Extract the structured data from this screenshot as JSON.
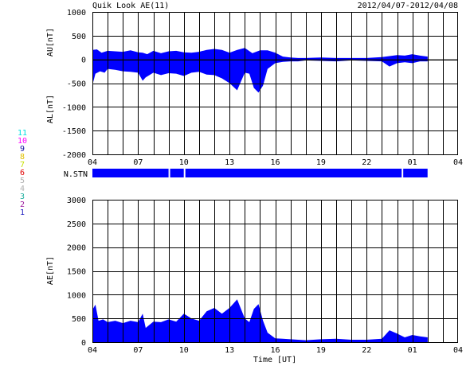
{
  "header": {
    "title": "Quik Look AE(11)",
    "date_range": "2012/04/07-2012/04/08"
  },
  "station_numbers": [
    {
      "label": "11",
      "color": "#00e0e0"
    },
    {
      "label": "10",
      "color": "#ff00ff"
    },
    {
      "label": "9",
      "color": "#1010a0"
    },
    {
      "label": "8",
      "color": "#e0c000"
    },
    {
      "label": "7",
      "color": "#c8e000"
    },
    {
      "label": "6",
      "color": "#e00000"
    },
    {
      "label": "5",
      "color": "#b0b0b0"
    },
    {
      "label": "4",
      "color": "#b0b0b0"
    },
    {
      "label": "3",
      "color": "#20b0a0"
    },
    {
      "label": "2",
      "color": "#a020a0"
    },
    {
      "label": "1",
      "color": "#2020c0"
    }
  ],
  "nstn": {
    "label": "N.STN",
    "coverage_hours": [
      0,
      22.0
    ],
    "gap_hours": [
      5.05,
      6.05,
      20.35
    ]
  },
  "colors": {
    "fill": "#0000ff",
    "grid": "#000000",
    "stn_bar": "#0000ff"
  },
  "chart_data": [
    {
      "type": "area",
      "ylabel_upper": "AU[nT]",
      "ylabel_lower": "AL[nT]",
      "ylim": [
        -2000,
        1000
      ],
      "yticks": [
        "1000",
        "500",
        "0",
        "-500",
        "-1000",
        "-1500",
        "-2000"
      ],
      "xlim_hours": [
        0,
        24
      ],
      "xticks": [
        "04",
        "07",
        "10",
        "13",
        "16",
        "19",
        "22",
        "01",
        "04"
      ],
      "grid": true,
      "series": [
        {
          "x_hours": [
            0,
            0.3,
            0.6,
            1.0,
            1.5,
            2.0,
            2.5,
            3.0,
            3.3,
            3.6,
            4.0,
            4.5,
            5.0,
            5.5,
            6.0,
            6.5,
            7.0,
            7.5,
            8.0,
            8.5,
            9.0,
            9.5,
            10.0,
            10.5,
            11.0,
            11.5,
            12.0,
            12.5,
            13.0,
            13.5,
            14.0,
            15.0,
            16.0,
            17.0,
            18.0,
            19.0,
            20.0,
            20.5,
            21.0,
            21.5,
            22.0
          ],
          "values": [
            200,
            210,
            140,
            180,
            170,
            160,
            190,
            150,
            140,
            110,
            180,
            130,
            170,
            180,
            150,
            140,
            160,
            200,
            220,
            200,
            140,
            200,
            240,
            130,
            190,
            190,
            140,
            60,
            40,
            30,
            30,
            40,
            30,
            30,
            30,
            50,
            90,
            80,
            110,
            80,
            60
          ]
        },
        {
          "x_hours": [
            0,
            0.2,
            0.5,
            0.8,
            1.0,
            1.5,
            2.0,
            2.5,
            3.0,
            3.3,
            3.5,
            4.0,
            4.5,
            5.0,
            5.5,
            6.0,
            6.5,
            7.0,
            7.5,
            8.0,
            8.5,
            9.0,
            9.5,
            10.0,
            10.3,
            10.6,
            10.9,
            11.2,
            11.5,
            12.0,
            12.5,
            13.0,
            13.5,
            14.0,
            15.0,
            16.0,
            17.0,
            18.0,
            19.0,
            19.5,
            20.0,
            20.5,
            21.0,
            21.5,
            22.0
          ],
          "values": [
            -540,
            -300,
            -250,
            -280,
            -200,
            -220,
            -250,
            -260,
            -280,
            -450,
            -380,
            -280,
            -330,
            -290,
            -300,
            -350,
            -280,
            -260,
            -320,
            -330,
            -400,
            -500,
            -650,
            -280,
            -300,
            -600,
            -700,
            -550,
            -200,
            -80,
            -50,
            -40,
            -40,
            -20,
            -30,
            -40,
            -20,
            -30,
            -40,
            -150,
            -80,
            -60,
            -80,
            -40,
            -40
          ]
        }
      ]
    },
    {
      "type": "area",
      "ylabel": "AE[nT]",
      "xlabel": "Time [UT]",
      "ylim": [
        0,
        3000
      ],
      "yticks": [
        "3000",
        "2500",
        "2000",
        "1500",
        "1000",
        "500",
        "0"
      ],
      "xlim_hours": [
        0,
        24
      ],
      "xticks": [
        "04",
        "07",
        "10",
        "13",
        "16",
        "19",
        "22",
        "01",
        "04"
      ],
      "grid": true,
      "series": [
        {
          "x_hours": [
            0,
            0.2,
            0.4,
            0.7,
            1.0,
            1.5,
            2.0,
            2.5,
            3.0,
            3.3,
            3.5,
            4.0,
            4.5,
            5.0,
            5.5,
            6.0,
            6.5,
            7.0,
            7.5,
            8.0,
            8.5,
            9.0,
            9.5,
            10.0,
            10.3,
            10.6,
            10.9,
            11.2,
            11.5,
            12.0,
            12.5,
            13.0,
            13.5,
            14.0,
            15.0,
            16.0,
            17.0,
            18.0,
            19.0,
            19.5,
            20.0,
            20.5,
            21.0,
            21.5,
            22.0
          ],
          "values": [
            680,
            790,
            450,
            480,
            420,
            450,
            400,
            450,
            420,
            600,
            300,
            430,
            420,
            480,
            430,
            600,
            500,
            450,
            650,
            720,
            600,
            720,
            900,
            500,
            420,
            700,
            800,
            450,
            200,
            80,
            70,
            60,
            50,
            40,
            60,
            70,
            50,
            50,
            70,
            250,
            180,
            100,
            150,
            120,
            100
          ]
        }
      ]
    }
  ]
}
